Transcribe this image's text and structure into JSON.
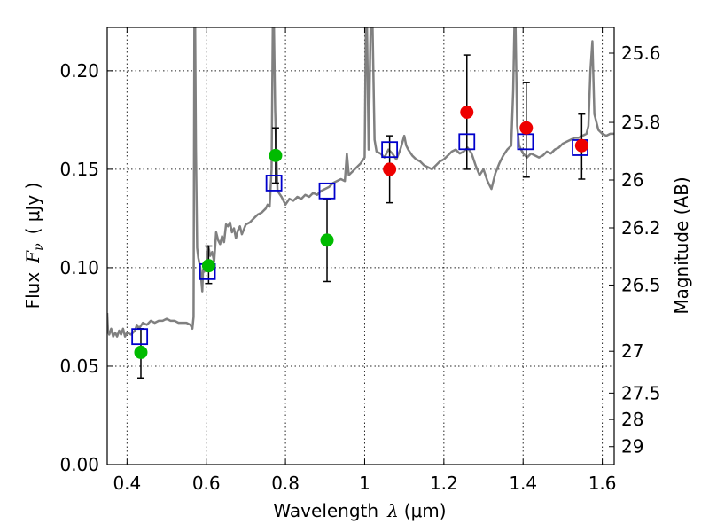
{
  "chart_data": {
    "type": "scatter",
    "xlabel_main": "Wavelength",
    "xlabel_symbol": "λ",
    "xlabel_unit": "(μm)",
    "ylabel_left_main": "Flux",
    "ylabel_left_symbol": "F",
    "ylabel_left_subscript": "ν",
    "ylabel_left_unit": "( μJy )",
    "ylabel_right": "Magnitude (AB)",
    "xlim": [
      0.35,
      1.63
    ],
    "ylim": [
      0.0,
      0.222
    ],
    "grid": true,
    "x_ticks": [
      {
        "value": 0.4,
        "label": "0.4"
      },
      {
        "value": 0.6,
        "label": "0.6"
      },
      {
        "value": 0.8,
        "label": "0.8"
      },
      {
        "value": 1.0,
        "label": "1"
      },
      {
        "value": 1.2,
        "label": "1.2"
      },
      {
        "value": 1.4,
        "label": "1.4"
      },
      {
        "value": 1.6,
        "label": "1.6"
      }
    ],
    "y_ticks": [
      {
        "value": 0.0,
        "label": "0.00"
      },
      {
        "value": 0.05,
        "label": "0.05"
      },
      {
        "value": 0.1,
        "label": "0.10"
      },
      {
        "value": 0.15,
        "label": "0.15"
      },
      {
        "value": 0.2,
        "label": "0.20"
      }
    ],
    "right_ticks": [
      {
        "value": 25.6,
        "label": "25.6"
      },
      {
        "value": 25.8,
        "label": "25.8"
      },
      {
        "value": 26.0,
        "label": "26"
      },
      {
        "value": 26.2,
        "label": "26.2"
      },
      {
        "value": 26.5,
        "label": "26.5"
      },
      {
        "value": 27.0,
        "label": "27"
      },
      {
        "value": 27.5,
        "label": "27.5"
      },
      {
        "value": 28.0,
        "label": "28"
      },
      {
        "value": 29.0,
        "label": "29"
      }
    ],
    "colors": {
      "model": "#808080",
      "green": "#00bb00",
      "red": "#ee0000",
      "box": "#0000cc",
      "error": "#000000"
    },
    "model_spectrum": [
      [
        0.35,
        0.077
      ],
      [
        0.352,
        0.068
      ],
      [
        0.355,
        0.066
      ],
      [
        0.36,
        0.069
      ],
      [
        0.365,
        0.065
      ],
      [
        0.37,
        0.067
      ],
      [
        0.375,
        0.065
      ],
      [
        0.38,
        0.068
      ],
      [
        0.385,
        0.066
      ],
      [
        0.39,
        0.069
      ],
      [
        0.395,
        0.065
      ],
      [
        0.4,
        0.067
      ],
      [
        0.41,
        0.066
      ],
      [
        0.42,
        0.068
      ],
      [
        0.425,
        0.071
      ],
      [
        0.43,
        0.069
      ],
      [
        0.44,
        0.072
      ],
      [
        0.45,
        0.071
      ],
      [
        0.46,
        0.073
      ],
      [
        0.47,
        0.072
      ],
      [
        0.48,
        0.073
      ],
      [
        0.49,
        0.073
      ],
      [
        0.5,
        0.074
      ],
      [
        0.51,
        0.073
      ],
      [
        0.52,
        0.073
      ],
      [
        0.53,
        0.072
      ],
      [
        0.54,
        0.072
      ],
      [
        0.55,
        0.072
      ],
      [
        0.56,
        0.071
      ],
      [
        0.565,
        0.069
      ],
      [
        0.568,
        0.075
      ],
      [
        0.57,
        0.222
      ],
      [
        0.572,
        0.222
      ],
      [
        0.574,
        0.16
      ],
      [
        0.577,
        0.11
      ],
      [
        0.58,
        0.105
      ],
      [
        0.585,
        0.1
      ],
      [
        0.59,
        0.088
      ],
      [
        0.592,
        0.099
      ],
      [
        0.595,
        0.098
      ],
      [
        0.6,
        0.099
      ],
      [
        0.605,
        0.111
      ],
      [
        0.61,
        0.106
      ],
      [
        0.615,
        0.108
      ],
      [
        0.62,
        0.103
      ],
      [
        0.625,
        0.118
      ],
      [
        0.63,
        0.114
      ],
      [
        0.635,
        0.112
      ],
      [
        0.64,
        0.116
      ],
      [
        0.645,
        0.113
      ],
      [
        0.65,
        0.122
      ],
      [
        0.655,
        0.121
      ],
      [
        0.66,
        0.123
      ],
      [
        0.665,
        0.118
      ],
      [
        0.67,
        0.12
      ],
      [
        0.675,
        0.115
      ],
      [
        0.68,
        0.119
      ],
      [
        0.685,
        0.121
      ],
      [
        0.69,
        0.117
      ],
      [
        0.7,
        0.122
      ],
      [
        0.71,
        0.123
      ],
      [
        0.72,
        0.125
      ],
      [
        0.73,
        0.127
      ],
      [
        0.74,
        0.128
      ],
      [
        0.75,
        0.13
      ],
      [
        0.755,
        0.132
      ],
      [
        0.76,
        0.131
      ],
      [
        0.765,
        0.15
      ],
      [
        0.768,
        0.222
      ],
      [
        0.771,
        0.222
      ],
      [
        0.774,
        0.18
      ],
      [
        0.777,
        0.158
      ],
      [
        0.78,
        0.139
      ],
      [
        0.79,
        0.136
      ],
      [
        0.8,
        0.132
      ],
      [
        0.81,
        0.135
      ],
      [
        0.82,
        0.134
      ],
      [
        0.83,
        0.136
      ],
      [
        0.84,
        0.135
      ],
      [
        0.85,
        0.137
      ],
      [
        0.86,
        0.136
      ],
      [
        0.87,
        0.138
      ],
      [
        0.88,
        0.137
      ],
      [
        0.89,
        0.139
      ],
      [
        0.9,
        0.14
      ],
      [
        0.91,
        0.141
      ],
      [
        0.92,
        0.143
      ],
      [
        0.93,
        0.144
      ],
      [
        0.94,
        0.145
      ],
      [
        0.95,
        0.144
      ],
      [
        0.955,
        0.158
      ],
      [
        0.96,
        0.147
      ],
      [
        0.97,
        0.149
      ],
      [
        0.98,
        0.151
      ],
      [
        0.99,
        0.153
      ],
      [
        1.0,
        0.156
      ],
      [
        1.003,
        0.222
      ],
      [
        1.006,
        0.222
      ],
      [
        1.01,
        0.16
      ],
      [
        1.015,
        0.222
      ],
      [
        1.02,
        0.222
      ],
      [
        1.025,
        0.165
      ],
      [
        1.03,
        0.159
      ],
      [
        1.04,
        0.158
      ],
      [
        1.05,
        0.156
      ],
      [
        1.06,
        0.16
      ],
      [
        1.07,
        0.158
      ],
      [
        1.08,
        0.155
      ],
      [
        1.09,
        0.16
      ],
      [
        1.1,
        0.167
      ],
      [
        1.105,
        0.162
      ],
      [
        1.11,
        0.16
      ],
      [
        1.12,
        0.157
      ],
      [
        1.13,
        0.155
      ],
      [
        1.14,
        0.154
      ],
      [
        1.15,
        0.152
      ],
      [
        1.16,
        0.151
      ],
      [
        1.17,
        0.15
      ],
      [
        1.18,
        0.152
      ],
      [
        1.19,
        0.154
      ],
      [
        1.2,
        0.155
      ],
      [
        1.21,
        0.157
      ],
      [
        1.22,
        0.159
      ],
      [
        1.23,
        0.16
      ],
      [
        1.24,
        0.158
      ],
      [
        1.25,
        0.159
      ],
      [
        1.26,
        0.161
      ],
      [
        1.27,
        0.158
      ],
      [
        1.28,
        0.152
      ],
      [
        1.29,
        0.147
      ],
      [
        1.3,
        0.15
      ],
      [
        1.31,
        0.144
      ],
      [
        1.32,
        0.14
      ],
      [
        1.33,
        0.148
      ],
      [
        1.34,
        0.153
      ],
      [
        1.35,
        0.157
      ],
      [
        1.36,
        0.16
      ],
      [
        1.37,
        0.162
      ],
      [
        1.375,
        0.19
      ],
      [
        1.378,
        0.222
      ],
      [
        1.381,
        0.222
      ],
      [
        1.385,
        0.172
      ],
      [
        1.39,
        0.162
      ],
      [
        1.4,
        0.158
      ],
      [
        1.41,
        0.156
      ],
      [
        1.42,
        0.158
      ],
      [
        1.43,
        0.157
      ],
      [
        1.44,
        0.156
      ],
      [
        1.45,
        0.157
      ],
      [
        1.46,
        0.159
      ],
      [
        1.47,
        0.158
      ],
      [
        1.48,
        0.16
      ],
      [
        1.49,
        0.161
      ],
      [
        1.5,
        0.163
      ],
      [
        1.51,
        0.164
      ],
      [
        1.52,
        0.165
      ],
      [
        1.53,
        0.166
      ],
      [
        1.54,
        0.166
      ],
      [
        1.55,
        0.167
      ],
      [
        1.56,
        0.168
      ],
      [
        1.565,
        0.172
      ],
      [
        1.57,
        0.2
      ],
      [
        1.575,
        0.215
      ],
      [
        1.58,
        0.178
      ],
      [
        1.59,
        0.17
      ],
      [
        1.6,
        0.168
      ],
      [
        1.61,
        0.167
      ],
      [
        1.62,
        0.168
      ],
      [
        1.63,
        0.168
      ]
    ],
    "green_points": [
      {
        "x": 0.435,
        "y": 0.057,
        "yerr_low": 0.044,
        "yerr_high": 0.069
      },
      {
        "x": 0.606,
        "y": 0.101,
        "yerr_low": 0.092,
        "yerr_high": 0.111
      },
      {
        "x": 0.775,
        "y": 0.157,
        "yerr_low": 0.143,
        "yerr_high": 0.171
      },
      {
        "x": 0.905,
        "y": 0.114,
        "yerr_low": 0.093,
        "yerr_high": 0.135
      }
    ],
    "red_points": [
      {
        "x": 1.063,
        "y": 0.15,
        "yerr_low": 0.133,
        "yerr_high": 0.167
      },
      {
        "x": 1.258,
        "y": 0.179,
        "yerr_low": 0.15,
        "yerr_high": 0.208
      },
      {
        "x": 1.408,
        "y": 0.171,
        "yerr_low": 0.146,
        "yerr_high": 0.194
      },
      {
        "x": 1.548,
        "y": 0.162,
        "yerr_low": 0.145,
        "yerr_high": 0.178
      }
    ],
    "model_boxes": [
      {
        "x": 0.432,
        "y": 0.065
      },
      {
        "x": 0.603,
        "y": 0.098
      },
      {
        "x": 0.771,
        "y": 0.143
      },
      {
        "x": 0.905,
        "y": 0.139
      },
      {
        "x": 1.063,
        "y": 0.16
      },
      {
        "x": 1.258,
        "y": 0.164
      },
      {
        "x": 1.406,
        "y": 0.164
      },
      {
        "x": 1.544,
        "y": 0.161
      }
    ]
  }
}
